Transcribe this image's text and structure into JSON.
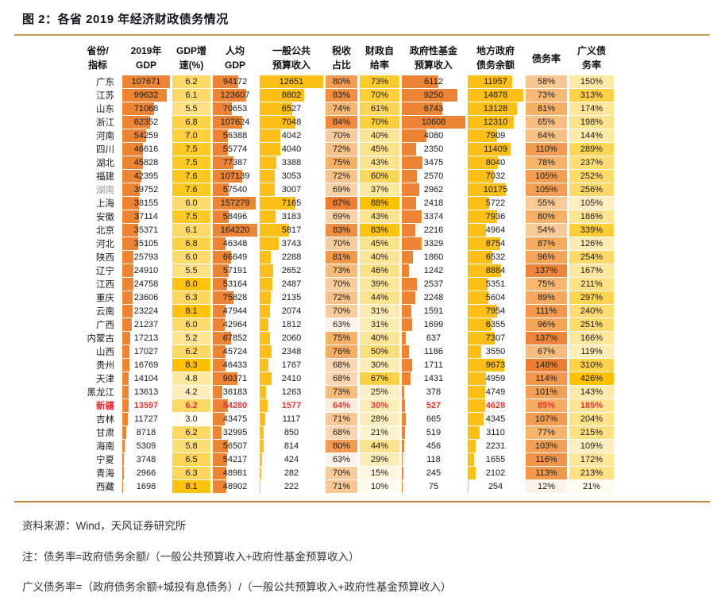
{
  "title": "图 2：各省 2019 年经济财政债务情况",
  "footer": {
    "source": "资料来源：Wind，天风证券研究所",
    "note1": "注：债务率=政府债务余额/（一般公共预算收入+政府性基金预算收入）",
    "note2": "广义债务率=（政府债务余额+城投有息债务）/（一般公共预算收入+政府性基金预算收入）"
  },
  "colors": {
    "rule_top": "#c79a5c",
    "rule_bottom": "#c08a45",
    "highlight_red": "#e03434",
    "dim_gray": "#979797"
  },
  "palettes": {
    "orange": {
      "bar": "#ec8435",
      "scale": [
        "#fdf2e7",
        "#f6b167",
        "#ed7d31"
      ]
    },
    "gold": {
      "bar": "#fbbf17",
      "scale": [
        "#fffbef",
        "#ffdf7e",
        "#ffc000"
      ]
    }
  },
  "chart_data": {
    "type": "table",
    "title": "图 2：各省 2019 年经济财政债务情况",
    "columns": [
      {
        "key": "province",
        "label": "省份/指标",
        "label_lines": [
          "省份/",
          "指标"
        ],
        "type": "label",
        "width": 56
      },
      {
        "key": "gdp",
        "label": "2019年GDP",
        "label_lines": [
          "2019年",
          "GDP"
        ],
        "type": "bar",
        "palette": "orange",
        "bar_max": 107671,
        "width": 60
      },
      {
        "key": "growth",
        "label": "GDP增速(%)",
        "label_lines": [
          "GDP增",
          "速(%)"
        ],
        "type": "scale",
        "palette": "gold",
        "domain": [
          3.0,
          8.3
        ],
        "decimals": 1,
        "width": 48
      },
      {
        "key": "gdp_pc",
        "label": "人均GDP",
        "label_lines": [
          "人均",
          "GDP"
        ],
        "type": "bar",
        "palette": "orange",
        "bar_max": 164220,
        "width": 56
      },
      {
        "key": "budget_rev",
        "label": "一般公共预算收入",
        "label_lines": [
          "一般公共",
          "预算收入"
        ],
        "type": "bar",
        "palette": "gold",
        "bar_max": 12651,
        "width": 80
      },
      {
        "key": "tax_share",
        "label": "税收占比",
        "label_lines": [
          "税收",
          "占比"
        ],
        "type": "scale",
        "palette": "orange",
        "domain": [
          63,
          87
        ],
        "suffix": "%",
        "width": 40
      },
      {
        "key": "self_rate",
        "label": "财政自给率",
        "label_lines": [
          "财政自",
          "给率"
        ],
        "type": "scale",
        "palette": "gold",
        "domain": [
          10,
          88
        ],
        "suffix": "%",
        "width": 50
      },
      {
        "key": "fund_rev",
        "label": "政府性基金预算收入",
        "label_lines": [
          "政府性基金",
          "预算收入"
        ],
        "type": "bar",
        "palette": "orange",
        "bar_max": 10608,
        "width": 80
      },
      {
        "key": "debt_bal",
        "label": "地方政府债务余额",
        "label_lines": [
          "地方政府",
          "债务余额"
        ],
        "type": "bar",
        "palette": "gold",
        "bar_max": 14878,
        "width": 70
      },
      {
        "key": "debt_ratio",
        "label": "债务率",
        "label_lines": [
          "债务率"
        ],
        "type": "scale",
        "palette": "orange",
        "domain": [
          12,
          148
        ],
        "suffix": "%",
        "width": 52
      },
      {
        "key": "broad_debt_ratio",
        "label": "广义债务率",
        "label_lines": [
          "广义债",
          "务率"
        ],
        "type": "scale",
        "palette": "gold",
        "domain": [
          21,
          426
        ],
        "suffix": "%",
        "width": 56
      }
    ],
    "rows": [
      {
        "province": "广东",
        "gdp": 107671,
        "growth": 6.2,
        "gdp_pc": 94172,
        "budget_rev": 12651,
        "tax_share": 80,
        "self_rate": 73,
        "fund_rev": 6112,
        "debt_bal": 11957,
        "debt_ratio": 58,
        "broad_debt_ratio": 150
      },
      {
        "province": "江苏",
        "gdp": 99632,
        "growth": 6.1,
        "gdp_pc": 123607,
        "budget_rev": 8802,
        "tax_share": 83,
        "self_rate": 70,
        "fund_rev": 9250,
        "debt_bal": 14878,
        "debt_ratio": 73,
        "broad_debt_ratio": 313
      },
      {
        "province": "山东",
        "gdp": 71068,
        "growth": 5.5,
        "gdp_pc": 70653,
        "budget_rev": 6527,
        "tax_share": 74,
        "self_rate": 61,
        "fund_rev": 6743,
        "debt_bal": 13128,
        "debt_ratio": 81,
        "broad_debt_ratio": 174
      },
      {
        "province": "浙江",
        "gdp": 62352,
        "growth": 6.8,
        "gdp_pc": 107624,
        "budget_rev": 7048,
        "tax_share": 84,
        "self_rate": 70,
        "fund_rev": 10608,
        "debt_bal": 12310,
        "debt_ratio": 65,
        "broad_debt_ratio": 198
      },
      {
        "province": "河南",
        "gdp": 54259,
        "growth": 7.0,
        "gdp_pc": 56388,
        "budget_rev": 4042,
        "tax_share": 70,
        "self_rate": 40,
        "fund_rev": 4080,
        "debt_bal": 7909,
        "debt_ratio": 64,
        "broad_debt_ratio": 144
      },
      {
        "province": "四川",
        "gdp": 46616,
        "growth": 7.5,
        "gdp_pc": 55774,
        "budget_rev": 4040,
        "tax_share": 72,
        "self_rate": 45,
        "fund_rev": 2350,
        "debt_bal": 11409,
        "debt_ratio": 110,
        "broad_debt_ratio": 289
      },
      {
        "province": "湖北",
        "gdp": 45828,
        "growth": 7.5,
        "gdp_pc": 77387,
        "budget_rev": 3388,
        "tax_share": 75,
        "self_rate": 43,
        "fund_rev": 3475,
        "debt_bal": 8040,
        "debt_ratio": 78,
        "broad_debt_ratio": 237
      },
      {
        "province": "福建",
        "gdp": 42395,
        "growth": 7.6,
        "gdp_pc": 107139,
        "budget_rev": 3053,
        "tax_share": 72,
        "self_rate": 60,
        "fund_rev": 2570,
        "debt_bal": 7032,
        "debt_ratio": 105,
        "broad_debt_ratio": 252
      },
      {
        "province": "湖南",
        "dim": true,
        "gdp": 39752,
        "growth": 7.6,
        "gdp_pc": 57540,
        "budget_rev": 3007,
        "tax_share": 69,
        "self_rate": 37,
        "fund_rev": 2962,
        "debt_bal": 10175,
        "debt_ratio": 105,
        "broad_debt_ratio": 256
      },
      {
        "province": "上海",
        "gdp": 38155,
        "growth": 6.0,
        "gdp_pc": 157279,
        "budget_rev": 7165,
        "tax_share": 87,
        "self_rate": 88,
        "fund_rev": 2418,
        "debt_bal": 5722,
        "debt_ratio": 55,
        "broad_debt_ratio": 105
      },
      {
        "province": "安徽",
        "gdp": 37114,
        "growth": 7.5,
        "gdp_pc": 58496,
        "budget_rev": 3183,
        "tax_share": 69,
        "self_rate": 43,
        "fund_rev": 3374,
        "debt_bal": 7936,
        "debt_ratio": 80,
        "broad_debt_ratio": 186
      },
      {
        "province": "北京",
        "gdp": 35371,
        "growth": 6.1,
        "gdp_pc": 164220,
        "budget_rev": 5817,
        "tax_share": 83,
        "self_rate": 83,
        "fund_rev": 2216,
        "debt_bal": 4964,
        "debt_ratio": 54,
        "broad_debt_ratio": 339
      },
      {
        "province": "河北",
        "gdp": 35105,
        "growth": 6.8,
        "gdp_pc": 46348,
        "budget_rev": 3743,
        "tax_share": 70,
        "self_rate": 45,
        "fund_rev": 3329,
        "debt_bal": 8754,
        "debt_ratio": 87,
        "broad_debt_ratio": 126
      },
      {
        "province": "陕西",
        "gdp": 25793,
        "growth": 6.0,
        "gdp_pc": 66649,
        "budget_rev": 2288,
        "tax_share": 81,
        "self_rate": 40,
        "fund_rev": 1860,
        "debt_bal": 6532,
        "debt_ratio": 96,
        "broad_debt_ratio": 254
      },
      {
        "province": "辽宁",
        "gdp": 24910,
        "growth": 5.5,
        "gdp_pc": 57191,
        "budget_rev": 2652,
        "tax_share": 73,
        "self_rate": 46,
        "fund_rev": 1242,
        "debt_bal": 8884,
        "debt_ratio": 137,
        "broad_debt_ratio": 167
      },
      {
        "province": "江西",
        "gdp": 24758,
        "growth": 8.0,
        "gdp_pc": 53164,
        "budget_rev": 2487,
        "tax_share": 70,
        "self_rate": 39,
        "fund_rev": 2537,
        "debt_bal": 5351,
        "debt_ratio": 75,
        "broad_debt_ratio": 211
      },
      {
        "province": "重庆",
        "gdp": 23606,
        "growth": 6.3,
        "gdp_pc": 75828,
        "budget_rev": 2135,
        "tax_share": 72,
        "self_rate": 44,
        "fund_rev": 2248,
        "debt_bal": 5604,
        "debt_ratio": 89,
        "broad_debt_ratio": 297
      },
      {
        "province": "云南",
        "gdp": 23224,
        "growth": 8.1,
        "gdp_pc": 47944,
        "budget_rev": 2074,
        "tax_share": 70,
        "self_rate": 31,
        "fund_rev": 1591,
        "debt_bal": 7954,
        "debt_ratio": 111,
        "broad_debt_ratio": 240
      },
      {
        "province": "广西",
        "gdp": 21237,
        "growth": 6.0,
        "gdp_pc": 42964,
        "budget_rev": 1812,
        "tax_share": 63,
        "self_rate": 31,
        "fund_rev": 1699,
        "debt_bal": 6355,
        "debt_ratio": 96,
        "broad_debt_ratio": 251
      },
      {
        "province": "内蒙古",
        "gdp": 17213,
        "growth": 5.2,
        "gdp_pc": 67852,
        "budget_rev": 2060,
        "tax_share": 75,
        "self_rate": 40,
        "fund_rev": 637,
        "debt_bal": 7307,
        "debt_ratio": 137,
        "broad_debt_ratio": 166
      },
      {
        "province": "山西",
        "gdp": 17027,
        "growth": 6.2,
        "gdp_pc": 45724,
        "budget_rev": 2348,
        "tax_share": 76,
        "self_rate": 50,
        "fund_rev": 1186,
        "debt_bal": 3550,
        "debt_ratio": 67,
        "broad_debt_ratio": 119
      },
      {
        "province": "贵州",
        "gdp": 16769,
        "growth": 8.3,
        "gdp_pc": 46433,
        "budget_rev": 1767,
        "tax_share": 68,
        "self_rate": 30,
        "fund_rev": 1711,
        "debt_bal": 9673,
        "debt_ratio": 148,
        "broad_debt_ratio": 310
      },
      {
        "province": "天津",
        "gdp": 14104,
        "growth": 4.8,
        "gdp_pc": 90371,
        "budget_rev": 2410,
        "tax_share": 68,
        "self_rate": 67,
        "fund_rev": 1431,
        "debt_bal": 4959,
        "debt_ratio": 114,
        "broad_debt_ratio": 426
      },
      {
        "province": "黑龙江",
        "gdp": 13613,
        "growth": 4.2,
        "gdp_pc": 36183,
        "budget_rev": 1263,
        "tax_share": 73,
        "self_rate": 25,
        "fund_rev": 378,
        "debt_bal": 4749,
        "debt_ratio": 101,
        "broad_debt_ratio": 143
      },
      {
        "province": "新疆",
        "highlight": true,
        "gdp": 13597,
        "growth": 6.2,
        "gdp_pc": 54280,
        "budget_rev": 1577,
        "tax_share": 64,
        "self_rate": 30,
        "fund_rev": 527,
        "debt_bal": 4628,
        "debt_ratio": 85,
        "broad_debt_ratio": 185
      },
      {
        "province": "吉林",
        "gdp": 11727,
        "growth": 3.0,
        "gdp_pc": 43475,
        "budget_rev": 1117,
        "tax_share": 71,
        "self_rate": 28,
        "fund_rev": 665,
        "debt_bal": 4345,
        "debt_ratio": 107,
        "broad_debt_ratio": 204
      },
      {
        "province": "甘肃",
        "gdp": 8718,
        "growth": 6.2,
        "gdp_pc": 32995,
        "budget_rev": 850,
        "tax_share": 68,
        "self_rate": 21,
        "fund_rev": 519,
        "debt_bal": 3110,
        "debt_ratio": 77,
        "broad_debt_ratio": 215
      },
      {
        "province": "海南",
        "gdp": 5309,
        "growth": 5.8,
        "gdp_pc": 56507,
        "budget_rev": 814,
        "tax_share": 80,
        "self_rate": 44,
        "fund_rev": 456,
        "debt_bal": 2231,
        "debt_ratio": 103,
        "broad_debt_ratio": 109
      },
      {
        "province": "宁夏",
        "gdp": 3748,
        "growth": 6.5,
        "gdp_pc": 54217,
        "budget_rev": 424,
        "tax_share": 63,
        "self_rate": 29,
        "fund_rev": 118,
        "debt_bal": 1655,
        "debt_ratio": 116,
        "broad_debt_ratio": 172
      },
      {
        "province": "青海",
        "gdp": 2966,
        "growth": 6.3,
        "gdp_pc": 48981,
        "budget_rev": 282,
        "tax_share": 70,
        "self_rate": 15,
        "fund_rev": 245,
        "debt_bal": 2102,
        "debt_ratio": 113,
        "broad_debt_ratio": 213
      },
      {
        "province": "西藏",
        "gdp": 1698,
        "growth": 8.1,
        "gdp_pc": 48902,
        "budget_rev": 222,
        "tax_share": 71,
        "self_rate": 10,
        "fund_rev": 75,
        "debt_bal": 254,
        "debt_ratio": 12,
        "broad_debt_ratio": 21
      }
    ]
  }
}
